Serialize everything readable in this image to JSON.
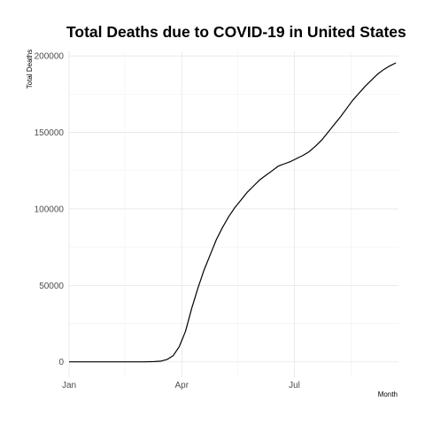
{
  "chart_data": {
    "type": "line",
    "title": "Total Deaths due to COVID-19 in United States",
    "xlabel": "Month",
    "ylabel": "Total Deaths",
    "x_ticks": [
      "Jan",
      "Apr",
      "Jul"
    ],
    "y_ticks": [
      "0",
      "50000",
      "100000",
      "150000",
      "200000"
    ],
    "ylim": [
      -10000,
      203000
    ],
    "xlim": [
      "2020-01-01",
      "2020-09-23"
    ],
    "grid": true,
    "series": [
      {
        "x": [
          "2020-01-01",
          "2020-02-01",
          "2020-03-01",
          "2020-03-10",
          "2020-03-15",
          "2020-03-20",
          "2020-03-25",
          "2020-03-30",
          "2020-04-04",
          "2020-04-09",
          "2020-04-14",
          "2020-04-19",
          "2020-04-24",
          "2020-04-29",
          "2020-05-04",
          "2020-05-09",
          "2020-05-14",
          "2020-05-19",
          "2020-05-24",
          "2020-05-29",
          "2020-06-03",
          "2020-06-08",
          "2020-06-13",
          "2020-06-18",
          "2020-06-23",
          "2020-06-28",
          "2020-07-03",
          "2020-07-08",
          "2020-07-13",
          "2020-07-18",
          "2020-07-23",
          "2020-07-28",
          "2020-08-02",
          "2020-08-07",
          "2020-08-12",
          "2020-08-17",
          "2020-08-22",
          "2020-08-27",
          "2020-09-01",
          "2020-09-06",
          "2020-09-11",
          "2020-09-16",
          "2020-09-21"
        ],
        "y": [
          0,
          0,
          30,
          200,
          500,
          1500,
          4000,
          10000,
          20000,
          35000,
          48000,
          60000,
          70000,
          80000,
          88000,
          95000,
          101000,
          106000,
          111000,
          115000,
          119000,
          122000,
          125000,
          128000,
          129500,
          131000,
          133000,
          135000,
          137500,
          141000,
          145000,
          150000,
          155000,
          160000,
          165500,
          171000,
          175500,
          180000,
          184000,
          188000,
          191000,
          193500,
          195500
        ]
      }
    ]
  }
}
